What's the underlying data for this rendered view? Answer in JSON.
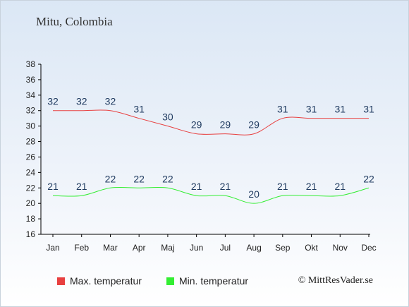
{
  "chart_data": {
    "type": "line",
    "title": "Mitu, Colombia",
    "categories": [
      "Jan",
      "Feb",
      "Mar",
      "Apr",
      "Maj",
      "Jun",
      "Jul",
      "Aug",
      "Sep",
      "Okt",
      "Nov",
      "Dec"
    ],
    "series": [
      {
        "name": "Max. temperatur",
        "color": "#e84040",
        "values": [
          32,
          32,
          32,
          31,
          30,
          29,
          29,
          29,
          31,
          31,
          31,
          31
        ]
      },
      {
        "name": "Min. temperatur",
        "color": "#33ee33",
        "values": [
          21,
          21,
          22,
          22,
          22,
          21,
          21,
          20,
          21,
          21,
          21,
          22
        ]
      }
    ],
    "ylim": [
      16,
      38
    ],
    "yticks": [
      16,
      18,
      20,
      22,
      24,
      26,
      28,
      30,
      32,
      34,
      36,
      38
    ],
    "grid": false,
    "legend_position": "bottom-left"
  },
  "credit": "© MittResVader.se"
}
